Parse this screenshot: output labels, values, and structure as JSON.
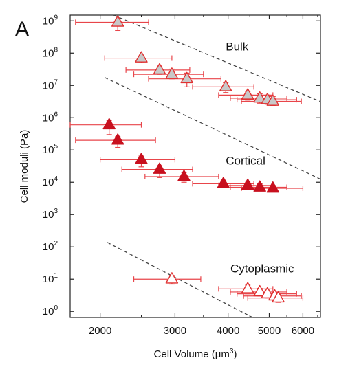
{
  "chart_data": {
    "type": "scatter",
    "panel_label": "A",
    "xlabel": "Cell Volume (",
    "xlabel_unit": "μm",
    "xlabel_unit_exp": "3",
    "xlabel_close": ")",
    "ylabel": "Cell moduli (Pa)",
    "x_scale": "log",
    "y_scale": "log",
    "xlim": [
      1700,
      6600
    ],
    "ylim": [
      0.65,
      1500000000.0
    ],
    "x_ticks": [
      {
        "value": 2000,
        "label": "2000"
      },
      {
        "value": 3000,
        "label": "3000"
      },
      {
        "value": 4000,
        "label": "4000"
      },
      {
        "value": 5000,
        "label": "5000"
      },
      {
        "value": 6000,
        "label": "6000"
      }
    ],
    "y_ticks": [
      {
        "value": 1,
        "base": "10",
        "exp": "0"
      },
      {
        "value": 10,
        "base": "10",
        "exp": "1"
      },
      {
        "value": 100,
        "base": "10",
        "exp": "2"
      },
      {
        "value": 1000,
        "base": "10",
        "exp": "3"
      },
      {
        "value": 10000,
        "base": "10",
        "exp": "4"
      },
      {
        "value": 100000,
        "base": "10",
        "exp": "5"
      },
      {
        "value": 1000000,
        "base": "10",
        "exp": "6"
      },
      {
        "value": 10000000,
        "base": "10",
        "exp": "7"
      },
      {
        "value": 100000000,
        "base": "10",
        "exp": "8"
      },
      {
        "value": 1000000000,
        "base": "10",
        "exp": "9"
      }
    ],
    "grid": false,
    "legend": "none",
    "colors": {
      "error_bar": "#e8454a",
      "fit_line": "#444444",
      "bulk_fill": "#c8c8c8",
      "cortical_fill": "#c8101e",
      "marker_edge": "#e03030"
    },
    "series": [
      {
        "name": "Bulk",
        "marker": "filled-gray-triangle",
        "label_pos": {
          "x": 3950,
          "y": 120000000.0
        },
        "fit": {
          "a": 3.2e+27,
          "b": -5.5,
          "xmin": 2050,
          "xmax": 6600
        },
        "points": [
          {
            "x": 2200,
            "y": 900000000.0,
            "xlo": 1750,
            "xhi": 2600,
            "ylo": 500000000.0,
            "yhi": 1100000000.0
          },
          {
            "x": 2500,
            "y": 70000000.0,
            "xlo": 2050,
            "xhi": 2950,
            "ylo": 50000000.0,
            "yhi": 80000000.0
          },
          {
            "x": 2760,
            "y": 30000000.0,
            "xlo": 2300,
            "xhi": 3250,
            "ylo": 22000000.0,
            "yhi": 40000000.0
          },
          {
            "x": 2950,
            "y": 22000000.0,
            "xlo": 2400,
            "xhi": 3500,
            "ylo": 16000000.0,
            "yhi": 32000000.0
          },
          {
            "x": 3200,
            "y": 16000000.0,
            "xlo": 2600,
            "xhi": 3850,
            "ylo": 9000000.0,
            "yhi": 24000000.0
          },
          {
            "x": 3950,
            "y": 9000000.0,
            "xlo": 3300,
            "xhi": 4600,
            "ylo": 6000000.0,
            "yhi": 12000000.0
          },
          {
            "x": 4450,
            "y": 5000000.0,
            "xlo": 3800,
            "xhi": 5100,
            "ylo": 3500000.0,
            "yhi": 6500000.0
          },
          {
            "x": 4750,
            "y": 4000000.0,
            "xlo": 4050,
            "xhi": 5500,
            "ylo": 2800000.0,
            "yhi": 5500000.0
          },
          {
            "x": 4950,
            "y": 3600000.0,
            "xlo": 4200,
            "xhi": 5800,
            "ylo": 2600000.0,
            "yhi": 5000000.0
          },
          {
            "x": 5100,
            "y": 3200000.0,
            "xlo": 4300,
            "xhi": 5950,
            "ylo": 2400000.0,
            "yhi": 4500000.0
          }
        ]
      },
      {
        "name": "Cortical",
        "marker": "filled-red-triangle",
        "label_pos": {
          "x": 3950,
          "y": 35000.0
        },
        "fit": {
          "a": 6e+27,
          "b": -6.2,
          "xmin": 2050,
          "xmax": 6600
        },
        "points": [
          {
            "x": 2100,
            "y": 600000.0,
            "xlo": 1700,
            "xhi": 2500,
            "ylo": 300000.0,
            "yhi": 800000.0
          },
          {
            "x": 2200,
            "y": 200000.0,
            "xlo": 1750,
            "xhi": 2700,
            "ylo": 120000.0,
            "yhi": 260000.0
          },
          {
            "x": 2500,
            "y": 50000.0,
            "xlo": 2000,
            "xhi": 3000,
            "ylo": 30000.0,
            "yhi": 65000.0
          },
          {
            "x": 2760,
            "y": 25000.0,
            "xlo": 2250,
            "xhi": 3300,
            "ylo": 14000.0,
            "yhi": 33000.0
          },
          {
            "x": 3150,
            "y": 15000.0,
            "xlo": 2550,
            "xhi": 3800,
            "ylo": 10000.0,
            "yhi": 20000.0
          },
          {
            "x": 3900,
            "y": 9000.0,
            "xlo": 3300,
            "xhi": 4600,
            "ylo": 7000.0,
            "yhi": 11500.0
          },
          {
            "x": 4450,
            "y": 8000.0,
            "xlo": 3800,
            "xhi": 5100,
            "ylo": 6200.0,
            "yhi": 10000.0
          },
          {
            "x": 4750,
            "y": 7000.0,
            "xlo": 4050,
            "xhi": 5500,
            "ylo": 5400.0,
            "yhi": 9000.0
          },
          {
            "x": 5100,
            "y": 6500.0,
            "xlo": 4300,
            "xhi": 6000,
            "ylo": 5000.0,
            "yhi": 8000.0
          }
        ]
      },
      {
        "name": "Cytoplasmic",
        "marker": "open-red-triangle",
        "label_pos": {
          "x": 4050,
          "y": 16
        },
        "fit": {
          "a": 5e+24,
          "b": -6.8,
          "xmin": 2080,
          "xmax": 6600
        },
        "points": [
          {
            "x": 2950,
            "y": 10,
            "xlo": 2400,
            "xhi": 3450,
            "ylo": 7,
            "yhi": 13
          },
          {
            "x": 4450,
            "y": 5,
            "xlo": 3800,
            "xhi": 5100,
            "ylo": 3.5,
            "yhi": 6.5
          },
          {
            "x": 4750,
            "y": 4,
            "xlo": 4050,
            "xhi": 5500,
            "ylo": 3,
            "yhi": 5.2
          },
          {
            "x": 4950,
            "y": 3.5,
            "xlo": 4200,
            "xhi": 5800,
            "ylo": 2.6,
            "yhi": 4.6
          },
          {
            "x": 5150,
            "y": 3,
            "xlo": 4350,
            "xhi": 5950,
            "ylo": 2.2,
            "yhi": 3.8
          },
          {
            "x": 5250,
            "y": 2.6,
            "xlo": 4450,
            "xhi": 6000,
            "ylo": 1.9,
            "yhi": 3.4
          }
        ]
      }
    ]
  }
}
